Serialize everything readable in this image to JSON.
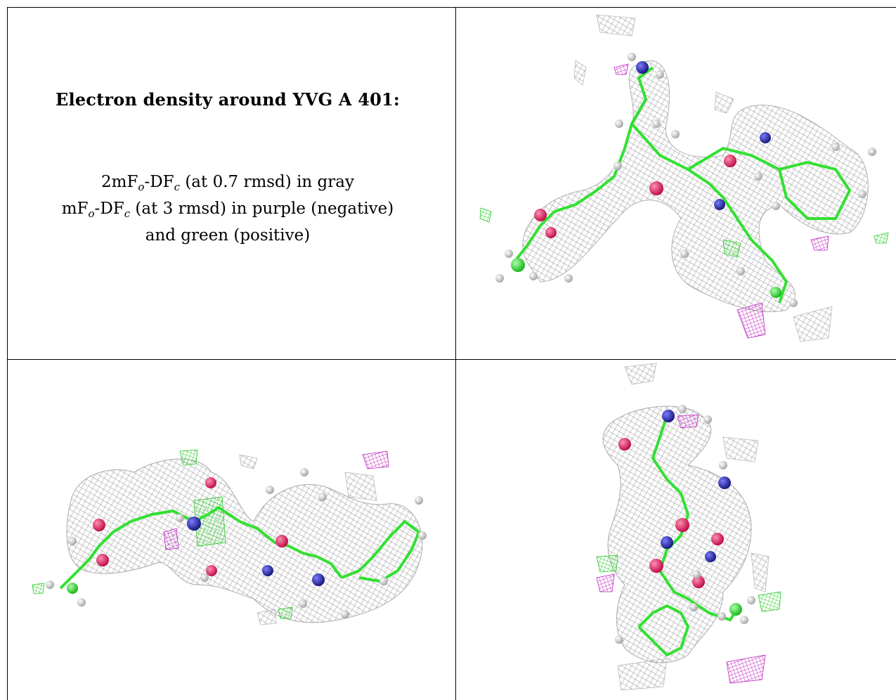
{
  "title": "Electron density around YVG A 401:",
  "legend": {
    "line1": {
      "prefix": "2mF",
      "sub1": "o",
      "mid": "-DF",
      "sub2": "c",
      "suffix": " (at 0.7 rmsd) in gray"
    },
    "line2": {
      "prefix": "mF",
      "sub1": "o",
      "mid": "-DF",
      "sub2": "c",
      "suffix": " (at 3 rmsd) in purple (negative)"
    },
    "line3": "and green (positive)"
  },
  "colors": {
    "mesh_gray": "#9a9a9a",
    "stick_green": "#33e033",
    "oxygen": "#e0245e",
    "nitrogen": "#2a2aa8",
    "hydrogen": "#e8e8e8",
    "negative": "#c020c0",
    "positive": "#22cc22"
  },
  "views": [
    {
      "name": "view-top-right"
    },
    {
      "name": "view-bottom-left"
    },
    {
      "name": "view-bottom-right"
    }
  ]
}
